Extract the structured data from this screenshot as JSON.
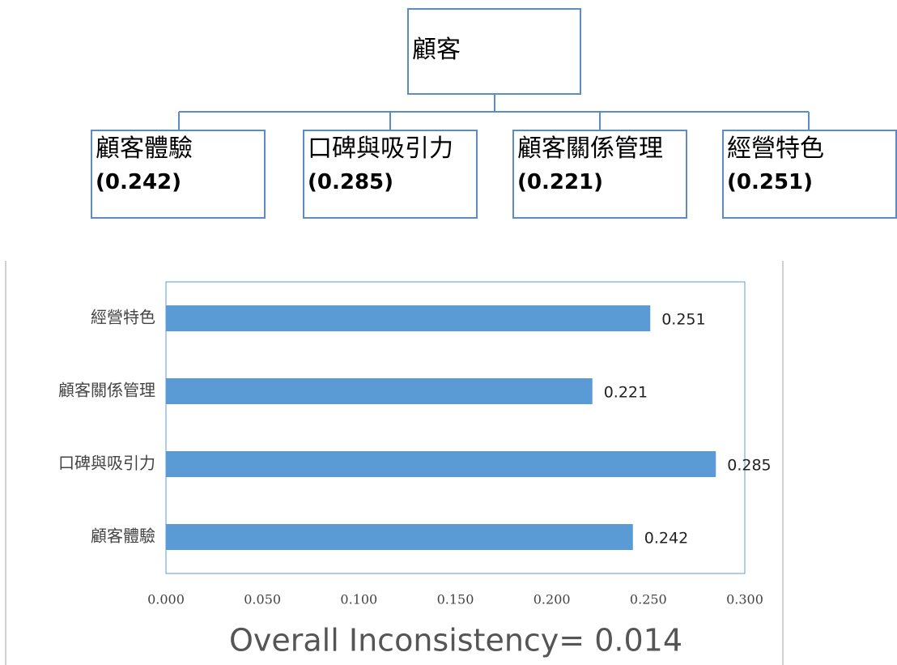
{
  "diagram": {
    "root": "顧客",
    "children": [
      {
        "name": "顧客體驗",
        "weight": "(0.242)"
      },
      {
        "name": "口碑與吸引力",
        "weight": "(0.285)"
      },
      {
        "name": "顧客關係管理",
        "weight": "(0.221)"
      },
      {
        "name": "經營特色",
        "weight": "(0.251)"
      }
    ]
  },
  "chart_data": {
    "type": "bar",
    "orientation": "horizontal",
    "categories": [
      "顧客體驗",
      "口碑與吸引力",
      "顧客關係管理",
      "經營特色"
    ],
    "values": [
      0.242,
      0.285,
      0.221,
      0.251
    ],
    "color": "#5b9bd5",
    "xlim": [
      0,
      0.3
    ],
    "xticks": [
      {
        "value": 0,
        "label": "0.000"
      },
      {
        "value": 0.05,
        "label": "0.050"
      },
      {
        "value": 0.1,
        "label": "0.100"
      },
      {
        "value": 0.15,
        "label": "0.150"
      },
      {
        "value": 0.2,
        "label": "0.200"
      },
      {
        "value": 0.25,
        "label": "0.250"
      },
      {
        "value": 0.3,
        "label": "0.300"
      }
    ],
    "annotation": "Overall Inconsistency= 0.014"
  }
}
